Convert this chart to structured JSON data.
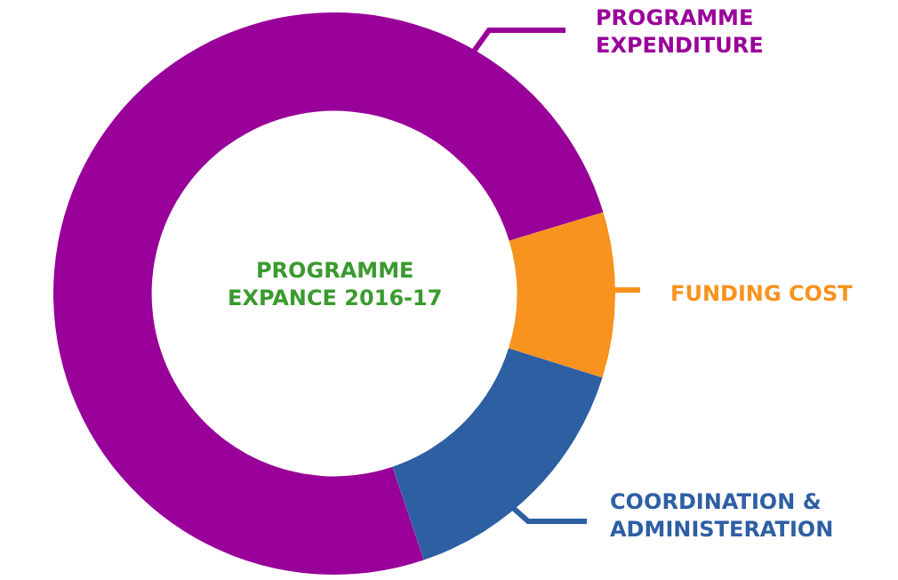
{
  "chart_data": {
    "type": "donut",
    "title": "PROGRAMME EXPANCE 2016-17",
    "categories": [
      "PROGRAMME EXPENDITURE",
      "FUNDING COST",
      "COORDINATION & ADMINISTERATION"
    ],
    "values": [
      75.5,
      9.5,
      15
    ],
    "colors": [
      "#990099",
      "#f7931e",
      "#2e5fa3"
    ],
    "legend": "right"
  }
}
